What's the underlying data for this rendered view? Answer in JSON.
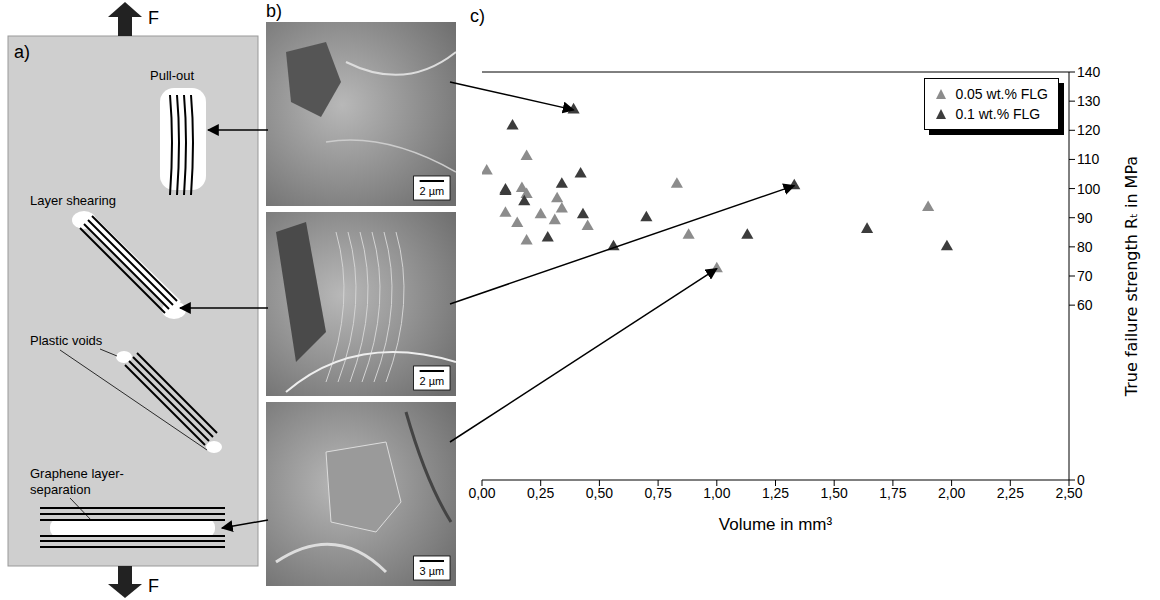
{
  "panel_a": {
    "label": "a)",
    "force": "F",
    "features": [
      "Pull-out",
      "Layer shearing",
      "Plastic voids",
      "Graphene layer-separation"
    ]
  },
  "panel_b": {
    "label": "b)",
    "images": [
      {
        "scale_bar": "2 µm",
        "points_to": {
          "series": "0.1 wt.% FLG",
          "point": 6
        }
      },
      {
        "scale_bar": "2 µm",
        "points_to": {
          "series": "0.1 wt.% FLG",
          "point": 12
        }
      },
      {
        "scale_bar": "3 µm",
        "points_to": {
          "series": "0.05 wt.% FLG",
          "point": 14
        }
      }
    ]
  },
  "panel_c": {
    "label": "c)"
  },
  "chart_data": {
    "type": "scatter",
    "x_label": "Volume in mm³",
    "y_label": "True failure strength Rₜ in MPa",
    "xlim": [
      0,
      2.5
    ],
    "xticks": [
      {
        "value": 0,
        "label": "0,00"
      },
      {
        "value": 0.25,
        "label": "0,25"
      },
      {
        "value": 0.5,
        "label": "0,50"
      },
      {
        "value": 0.75,
        "label": "0,75"
      },
      {
        "value": 1,
        "label": "1,00"
      },
      {
        "value": 1.25,
        "label": "1,25"
      },
      {
        "value": 1.5,
        "label": "1,50"
      },
      {
        "value": 1.75,
        "label": "1,75"
      },
      {
        "value": 2,
        "label": "2,00"
      },
      {
        "value": 2.25,
        "label": "2,25"
      },
      {
        "value": 2.5,
        "label": "2,50"
      }
    ],
    "ylim": [
      0,
      140
    ],
    "yticks": [
      0,
      60,
      70,
      80,
      90,
      100,
      110,
      120,
      130,
      140
    ],
    "grid": false,
    "legend": "top-right",
    "series": [
      {
        "name": "0.05 wt.% FLG",
        "color": "#8c8c8c",
        "marker": "triangle",
        "x": [
          0.02,
          0.1,
          0.15,
          0.17,
          0.19,
          0.19,
          0.19,
          0.25,
          0.31,
          0.32,
          0.34,
          0.45,
          0.83,
          0.88,
          1.0,
          1.9
        ],
        "y": [
          106,
          91.5,
          88,
          100,
          111,
          98,
          82,
          91,
          89,
          96.5,
          93,
          87,
          101.5,
          84,
          72.5,
          93.5
        ]
      },
      {
        "name": "0.1 wt.% FLG",
        "color": "#3c3c3c",
        "marker": "triangle",
        "x": [
          0.1,
          0.1,
          0.13,
          0.18,
          0.28,
          0.34,
          0.39,
          0.42,
          0.43,
          0.56,
          0.7,
          1.13,
          1.33,
          1.64,
          1.98
        ],
        "y": [
          99.5,
          99,
          121.5,
          95.5,
          83,
          101.5,
          127,
          105,
          91,
          80,
          90,
          84,
          101,
          86,
          80
        ]
      }
    ]
  }
}
